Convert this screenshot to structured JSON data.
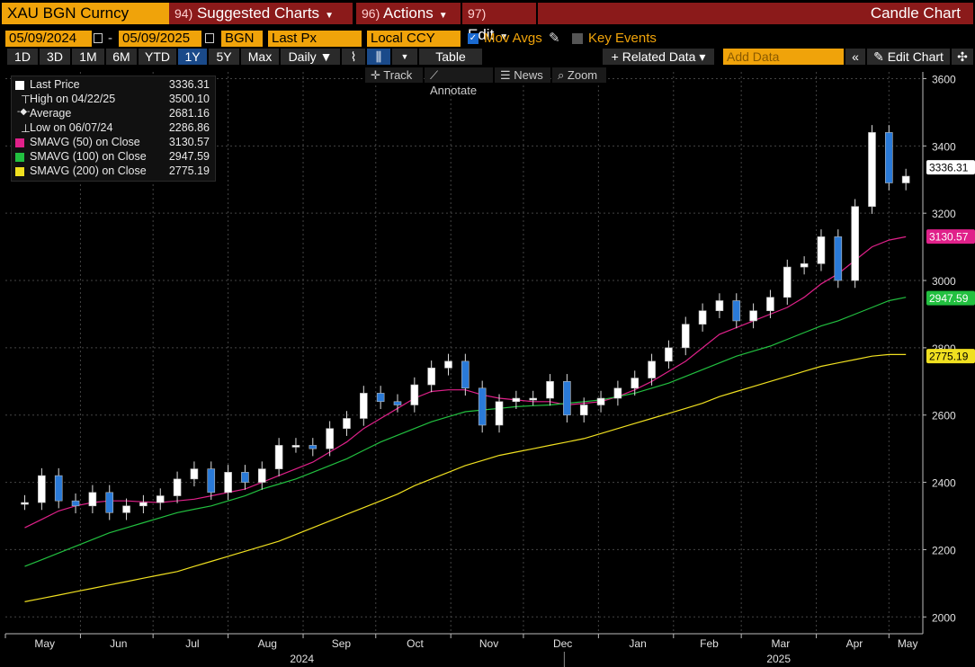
{
  "header": {
    "ticker": "XAU BGN Curncy",
    "menu_suggested": {
      "num": "94)",
      "label": "Suggested Charts"
    },
    "menu_actions": {
      "num": "96)",
      "label": "Actions"
    },
    "menu_edit": {
      "num": "97)",
      "label": "Edit"
    },
    "title": "Candle Chart"
  },
  "controls": {
    "start_date": "05/09/2024",
    "end_date": "05/09/2025",
    "date_sep": "-",
    "source": "BGN",
    "price_field": "Last Px",
    "currency": "Local CCY",
    "mov_avgs_label": "Mov Avgs",
    "key_events_label": "Key Events"
  },
  "toolbar": {
    "ranges": [
      "1D",
      "3D",
      "1M",
      "6M",
      "YTD",
      "1Y",
      "5Y",
      "Max"
    ],
    "selected_range": "1Y",
    "frequency": "Daily ▼",
    "table_label": "Table",
    "related_data": "+ Related Data ▾",
    "add_data_placeholder": "Add Data",
    "edit_chart": "Edit Chart",
    "track": "Track",
    "annotate": "Annotate",
    "news": "News",
    "zoom": "Zoom"
  },
  "legend": [
    {
      "label": "Last Price",
      "value": "3336.31",
      "color": "#ffffff"
    },
    {
      "label": "High on 04/22/25",
      "value": "3500.10",
      "color": ""
    },
    {
      "label": "Average",
      "value": "2681.16",
      "color": ""
    },
    {
      "label": "Low on 06/07/24",
      "value": "2286.86",
      "color": ""
    },
    {
      "label": "SMAVG (50)  on Close",
      "value": "3130.57",
      "color": "#e0218a"
    },
    {
      "label": "SMAVG (100)  on Close",
      "value": "2947.59",
      "color": "#22c040"
    },
    {
      "label": "SMAVG (200)  on Close",
      "value": "2775.19",
      "color": "#f0e020"
    }
  ],
  "chart_data": {
    "type": "line",
    "title": "",
    "xlabel": "",
    "ylabel": "",
    "ylim": [
      1950,
      3620
    ],
    "y_ticks": [
      "2000",
      "2200",
      "2400",
      "2600",
      "2800",
      "3000",
      "3200",
      "3400",
      "3600"
    ],
    "x_month_labels": [
      "May",
      "Jun",
      "Jul",
      "Aug",
      "Sep",
      "Oct",
      "Nov",
      "Dec",
      "Jan",
      "Feb",
      "Mar",
      "Apr",
      "May"
    ],
    "x_year_labels": [
      "2024",
      "2025"
    ],
    "grid": true,
    "x": [
      "2024-05-09",
      "2024-05-16",
      "2024-05-23",
      "2024-05-30",
      "2024-06-06",
      "2024-06-13",
      "2024-06-20",
      "2024-06-27",
      "2024-07-04",
      "2024-07-11",
      "2024-07-18",
      "2024-07-25",
      "2024-08-01",
      "2024-08-08",
      "2024-08-15",
      "2024-08-22",
      "2024-08-29",
      "2024-09-05",
      "2024-09-12",
      "2024-09-19",
      "2024-09-26",
      "2024-10-03",
      "2024-10-10",
      "2024-10-17",
      "2024-10-24",
      "2024-10-31",
      "2024-11-07",
      "2024-11-14",
      "2024-11-21",
      "2024-11-28",
      "2024-12-05",
      "2024-12-12",
      "2024-12-19",
      "2024-12-26",
      "2025-01-02",
      "2025-01-09",
      "2025-01-16",
      "2025-01-23",
      "2025-01-30",
      "2025-02-06",
      "2025-02-13",
      "2025-02-20",
      "2025-02-27",
      "2025-03-06",
      "2025-03-13",
      "2025-03-20",
      "2025-03-27",
      "2025-04-03",
      "2025-04-10",
      "2025-04-17",
      "2025-04-24",
      "2025-05-01",
      "2025-05-08"
    ],
    "series": [
      {
        "name": "Last Price",
        "color": "#ffffff",
        "values": [
          2340,
          2420,
          2345,
          2330,
          2370,
          2310,
          2330,
          2340,
          2360,
          2410,
          2440,
          2370,
          2430,
          2400,
          2440,
          2510,
          2510,
          2500,
          2560,
          2590,
          2665,
          2640,
          2630,
          2690,
          2740,
          2760,
          2680,
          2570,
          2640,
          2650,
          2650,
          2700,
          2600,
          2630,
          2650,
          2680,
          2710,
          2760,
          2800,
          2870,
          2910,
          2940,
          2880,
          2910,
          2950,
          3040,
          3050,
          3130,
          3000,
          3220,
          3440,
          3290,
          3310
        ]
      },
      {
        "name": "SMAVG (50)",
        "color": "#e0218a",
        "values": [
          2265,
          2290,
          2315,
          2330,
          2340,
          2345,
          2345,
          2342,
          2340,
          2345,
          2350,
          2360,
          2370,
          2380,
          2400,
          2420,
          2440,
          2460,
          2490,
          2520,
          2560,
          2590,
          2620,
          2650,
          2670,
          2675,
          2675,
          2660,
          2650,
          2645,
          2640,
          2640,
          2630,
          2635,
          2640,
          2655,
          2675,
          2700,
          2730,
          2760,
          2800,
          2840,
          2860,
          2880,
          2900,
          2920,
          2950,
          2990,
          3020,
          3060,
          3100,
          3120,
          3130
        ]
      },
      {
        "name": "SMAVG (100)",
        "color": "#22c040",
        "values": [
          2150,
          2170,
          2190,
          2210,
          2230,
          2250,
          2265,
          2280,
          2295,
          2310,
          2320,
          2330,
          2345,
          2360,
          2380,
          2395,
          2410,
          2430,
          2450,
          2470,
          2495,
          2520,
          2540,
          2560,
          2580,
          2595,
          2610,
          2615,
          2620,
          2625,
          2628,
          2630,
          2635,
          2640,
          2645,
          2655,
          2665,
          2680,
          2695,
          2715,
          2735,
          2755,
          2775,
          2790,
          2805,
          2825,
          2845,
          2865,
          2880,
          2900,
          2920,
          2940,
          2950
        ]
      },
      {
        "name": "SMAVG (200)",
        "color": "#f0e020",
        "values": [
          2045,
          2055,
          2065,
          2075,
          2085,
          2095,
          2105,
          2115,
          2125,
          2135,
          2150,
          2165,
          2180,
          2195,
          2210,
          2225,
          2245,
          2265,
          2285,
          2305,
          2325,
          2345,
          2365,
          2390,
          2410,
          2430,
          2450,
          2465,
          2480,
          2490,
          2500,
          2510,
          2520,
          2530,
          2545,
          2560,
          2575,
          2590,
          2605,
          2620,
          2635,
          2655,
          2670,
          2685,
          2700,
          2715,
          2730,
          2745,
          2755,
          2765,
          2775,
          2780,
          2780
        ]
      }
    ],
    "right_tags": [
      {
        "value": 3336.31,
        "label": "3336.31",
        "bg": "#ffffff",
        "fg": "#000000"
      },
      {
        "value": 3130.57,
        "label": "3130.57",
        "bg": "#e0218a",
        "fg": "#ffffff"
      },
      {
        "value": 2947.59,
        "label": "2947.59",
        "bg": "#22c040",
        "fg": "#ffffff"
      },
      {
        "value": 2775.19,
        "label": "2775.19",
        "bg": "#f0e020",
        "fg": "#000000"
      }
    ]
  }
}
